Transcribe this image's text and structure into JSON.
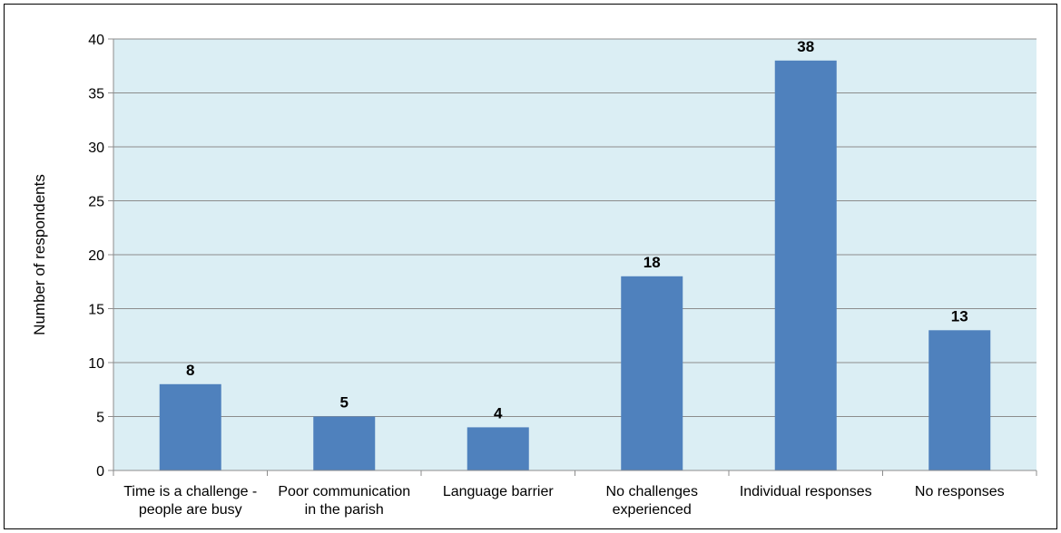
{
  "chart_data": {
    "type": "bar",
    "categories": [
      [
        "Time is a challenge -",
        "people are busy"
      ],
      [
        "Poor communication",
        "in the parish"
      ],
      [
        "Language barrier"
      ],
      [
        "No challenges",
        "experienced"
      ],
      [
        "Individual responses"
      ],
      [
        "No responses"
      ]
    ],
    "values": [
      8,
      5,
      4,
      18,
      38,
      13
    ],
    "data_labels": [
      "8",
      "5",
      "4",
      "18",
      "38",
      "13"
    ],
    "ylabel": "Number of respondents",
    "xlabel": "",
    "ylim": [
      0,
      40
    ],
    "yticks": [
      0,
      5,
      10,
      15,
      20,
      25,
      30,
      35,
      40
    ],
    "grid": true,
    "legend": "none",
    "colors": {
      "bar": "#4f81bd",
      "plot_background": "#dbeef4",
      "gridline": "#8c8c8c",
      "axis": "#8c8c8c"
    }
  }
}
